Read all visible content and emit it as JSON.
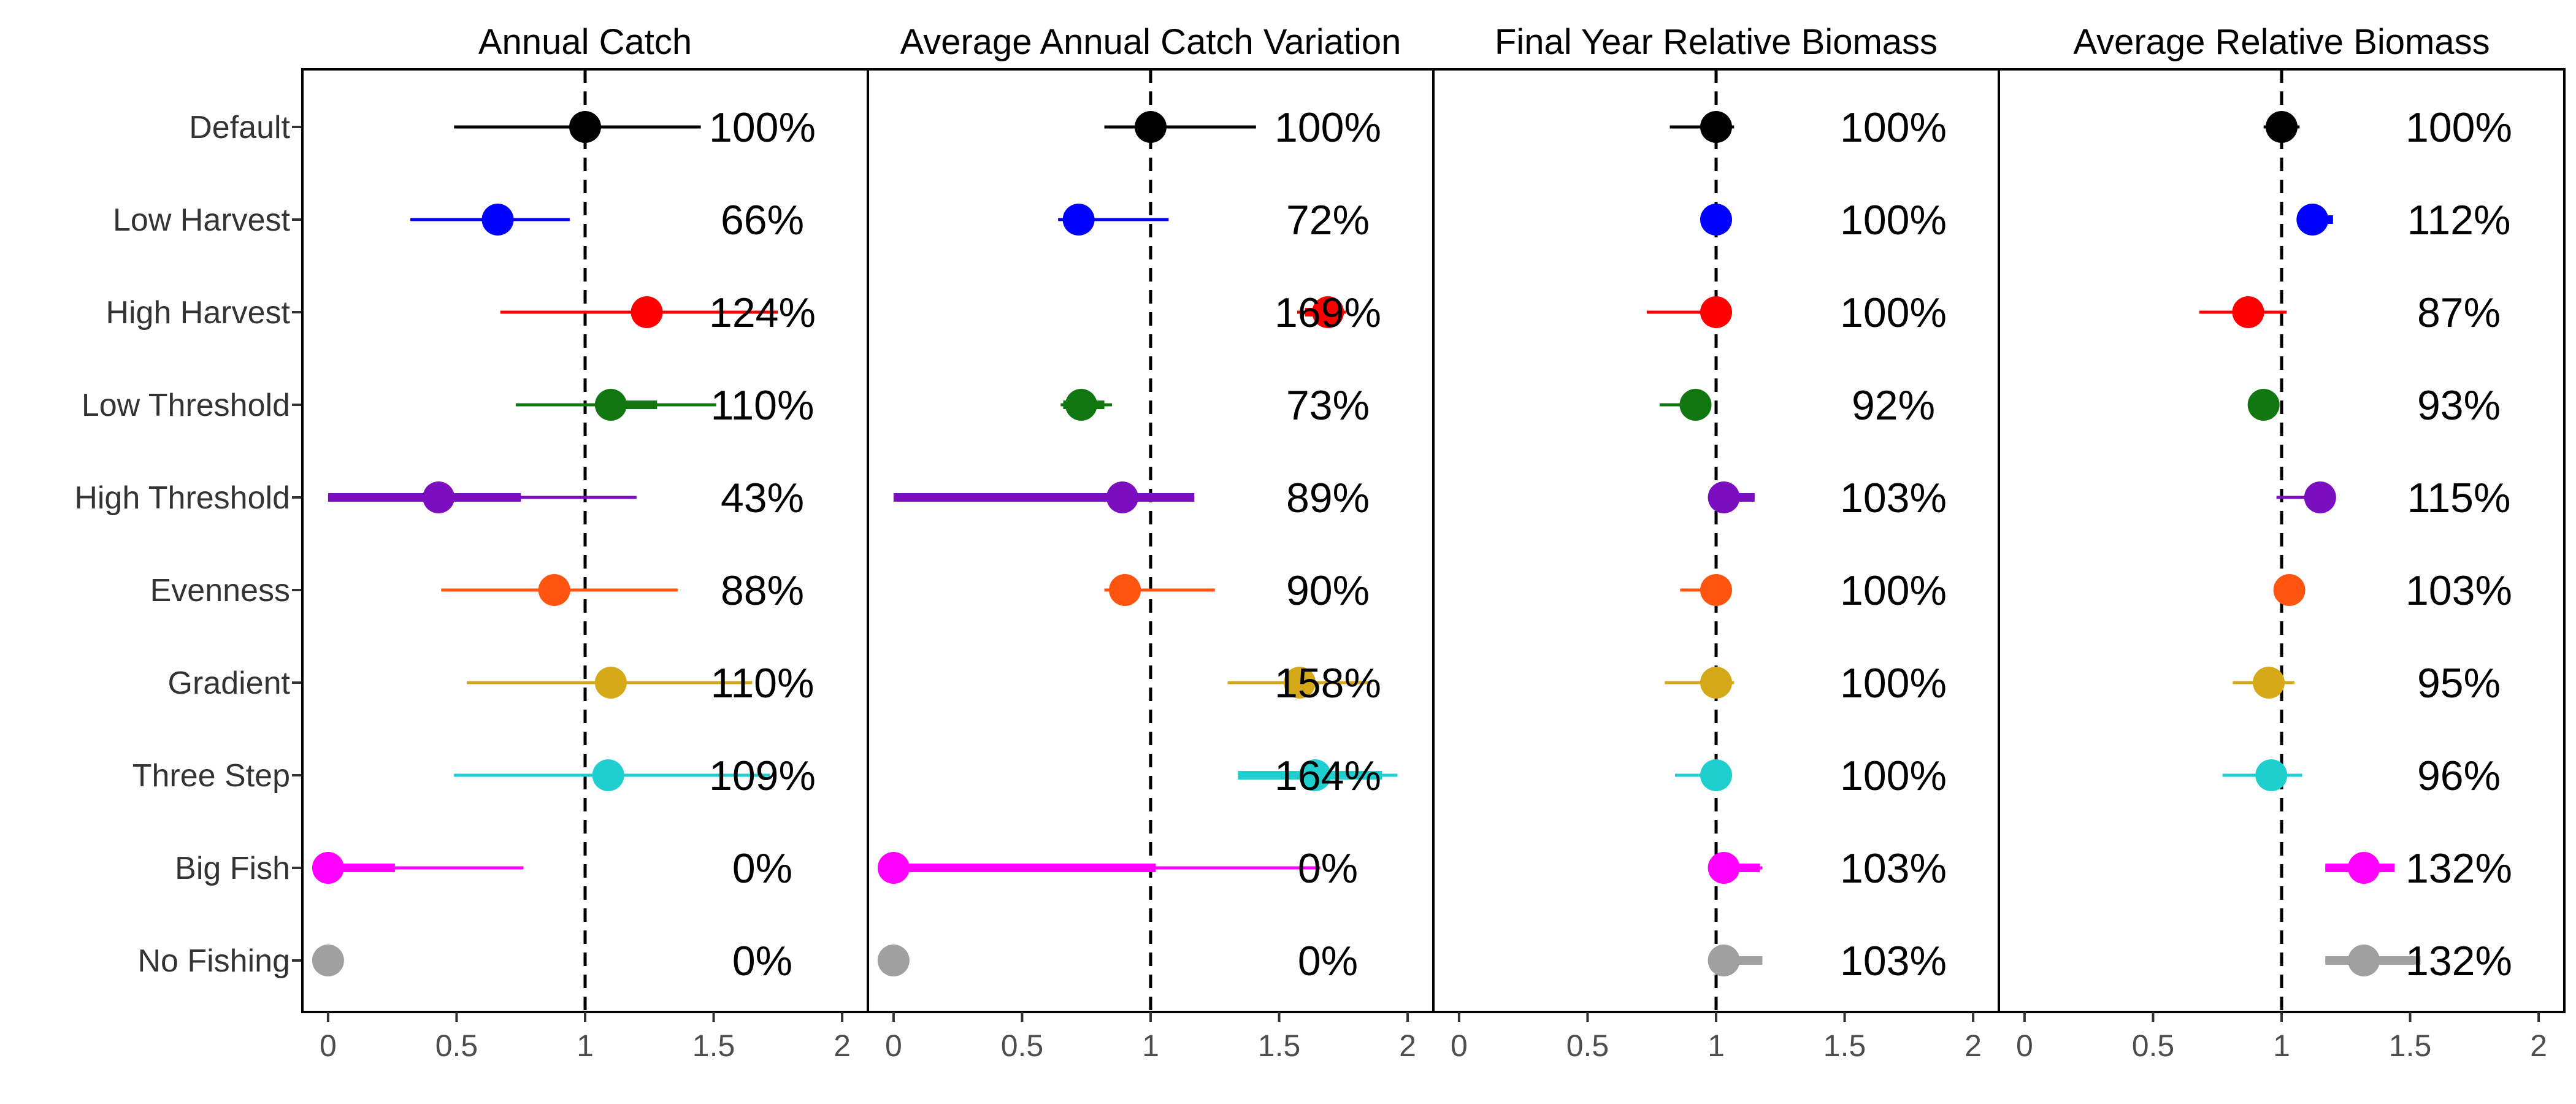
{
  "chart_data": {
    "type": "forest",
    "xlim": [
      -0.1,
      2.1
    ],
    "x_ticks": [
      0,
      0.5,
      1,
      1.5,
      2
    ],
    "x_tick_labels": [
      "0",
      "0.5",
      "1",
      "1.5",
      "2"
    ],
    "reference_line": 1,
    "categories": [
      "Default",
      "Low Harvest",
      "High Harvest",
      "Low Threshold",
      "High Threshold",
      "Evenness",
      "Gradient",
      "Three Step",
      "Big Fish",
      "No Fishing"
    ],
    "colors": [
      "#000000",
      "#0000ff",
      "#ff0000",
      "#117711",
      "#7b0fbf",
      "#ff5511",
      "#d4a817",
      "#1fcece",
      "#ff00ff",
      "#a0a0a0"
    ],
    "panels": [
      {
        "title": "Annual Catch",
        "points": [
          {
            "x": 1.0,
            "lo": 0.49,
            "hi": 1.45,
            "q_lo": 0.95,
            "q_hi": 1.05,
            "label": "100%"
          },
          {
            "x": 0.66,
            "lo": 0.32,
            "hi": 0.94,
            "q_lo": 0.6,
            "q_hi": 0.72,
            "label": "66%"
          },
          {
            "x": 1.24,
            "lo": 0.67,
            "hi": 1.75,
            "q_lo": 1.18,
            "q_hi": 1.3,
            "label": "124%"
          },
          {
            "x": 1.1,
            "lo": 0.73,
            "hi": 1.51,
            "q_lo": 1.05,
            "q_hi": 1.28,
            "label": "110%"
          },
          {
            "x": 0.43,
            "lo": 0.0,
            "hi": 1.2,
            "q_lo": 0.0,
            "q_hi": 0.75,
            "label": "43%"
          },
          {
            "x": 0.88,
            "lo": 0.44,
            "hi": 1.36,
            "q_lo": 0.82,
            "q_hi": 0.94,
            "label": "88%"
          },
          {
            "x": 1.1,
            "lo": 0.54,
            "hi": 1.65,
            "q_lo": 1.04,
            "q_hi": 1.16,
            "label": "110%"
          },
          {
            "x": 1.09,
            "lo": 0.49,
            "hi": 1.72,
            "q_lo": 1.03,
            "q_hi": 1.15,
            "label": "109%"
          },
          {
            "x": 0.0,
            "lo": 0.0,
            "hi": 0.76,
            "q_lo": 0.0,
            "q_hi": 0.26,
            "label": "0%"
          },
          {
            "x": 0.0,
            "lo": 0.0,
            "hi": 0.0,
            "q_lo": 0.0,
            "q_hi": 0.0,
            "label": "0%"
          }
        ]
      },
      {
        "title": "Average Annual Catch Variation",
        "points": [
          {
            "x": 1.0,
            "lo": 0.82,
            "hi": 1.41,
            "q_lo": 0.95,
            "q_hi": 1.05,
            "label": "100%"
          },
          {
            "x": 0.72,
            "lo": 0.64,
            "hi": 1.07,
            "q_lo": 0.68,
            "q_hi": 0.76,
            "label": "72%"
          },
          {
            "x": 1.69,
            "lo": 1.57,
            "hi": 1.76,
            "q_lo": 1.6,
            "q_hi": 1.74,
            "label": "169%"
          },
          {
            "x": 0.73,
            "lo": 0.65,
            "hi": 0.85,
            "q_lo": 0.66,
            "q_hi": 0.82,
            "label": "73%"
          },
          {
            "x": 0.89,
            "lo": 0.0,
            "hi": 1.17,
            "q_lo": 0.0,
            "q_hi": 1.17,
            "label": "89%"
          },
          {
            "x": 0.9,
            "lo": 0.82,
            "hi": 1.25,
            "q_lo": 0.86,
            "q_hi": 0.95,
            "label": "90%"
          },
          {
            "x": 1.58,
            "lo": 1.3,
            "hi": 1.86,
            "q_lo": 1.52,
            "q_hi": 1.64,
            "label": "158%"
          },
          {
            "x": 1.64,
            "lo": 1.34,
            "hi": 1.96,
            "q_lo": 1.34,
            "q_hi": 1.9,
            "label": "164%"
          },
          {
            "x": 0.0,
            "lo": 0.0,
            "hi": 1.66,
            "q_lo": 0.0,
            "q_hi": 1.02,
            "label": "0%"
          },
          {
            "x": 0.0,
            "lo": 0.0,
            "hi": 0.0,
            "q_lo": 0.0,
            "q_hi": 0.0,
            "label": "0%"
          }
        ]
      },
      {
        "title": "Final Year Relative Biomass",
        "points": [
          {
            "x": 1.0,
            "lo": 0.82,
            "hi": 1.07,
            "q_lo": 0.97,
            "q_hi": 1.03,
            "label": "100%"
          },
          {
            "x": 1.0,
            "lo": 0.98,
            "hi": 1.02,
            "q_lo": 0.99,
            "q_hi": 1.01,
            "label": "100%"
          },
          {
            "x": 1.0,
            "lo": 0.73,
            "hi": 1.02,
            "q_lo": 0.97,
            "q_hi": 1.01,
            "label": "100%"
          },
          {
            "x": 0.92,
            "lo": 0.78,
            "hi": 0.95,
            "q_lo": 0.9,
            "q_hi": 0.94,
            "label": "92%"
          },
          {
            "x": 1.03,
            "lo": 0.99,
            "hi": 1.15,
            "q_lo": 1.0,
            "q_hi": 1.15,
            "label": "103%"
          },
          {
            "x": 1.0,
            "lo": 0.86,
            "hi": 1.06,
            "q_lo": 0.97,
            "q_hi": 1.03,
            "label": "100%"
          },
          {
            "x": 1.0,
            "lo": 0.8,
            "hi": 1.07,
            "q_lo": 0.97,
            "q_hi": 1.03,
            "label": "100%"
          },
          {
            "x": 1.0,
            "lo": 0.84,
            "hi": 1.05,
            "q_lo": 0.97,
            "q_hi": 1.03,
            "label": "100%"
          },
          {
            "x": 1.03,
            "lo": 0.99,
            "hi": 1.18,
            "q_lo": 1.0,
            "q_hi": 1.17,
            "label": "103%"
          },
          {
            "x": 1.03,
            "lo": 1.0,
            "hi": 1.18,
            "q_lo": 1.0,
            "q_hi": 1.18,
            "label": "103%"
          }
        ]
      },
      {
        "title": "Average Relative Biomass",
        "points": [
          {
            "x": 1.0,
            "lo": 0.93,
            "hi": 1.07,
            "q_lo": 0.97,
            "q_hi": 1.03,
            "label": "100%"
          },
          {
            "x": 1.12,
            "lo": 1.08,
            "hi": 1.2,
            "q_lo": 1.1,
            "q_hi": 1.2,
            "label": "112%"
          },
          {
            "x": 0.87,
            "lo": 0.68,
            "hi": 1.02,
            "q_lo": 0.83,
            "q_hi": 0.91,
            "label": "87%"
          },
          {
            "x": 0.93,
            "lo": 0.88,
            "hi": 0.98,
            "q_lo": 0.91,
            "q_hi": 0.95,
            "label": "93%"
          },
          {
            "x": 1.15,
            "lo": 0.98,
            "hi": 1.18,
            "q_lo": 1.12,
            "q_hi": 1.18,
            "label": "115%"
          },
          {
            "x": 1.03,
            "lo": 0.97,
            "hi": 1.06,
            "q_lo": 1.0,
            "q_hi": 1.05,
            "label": "103%"
          },
          {
            "x": 0.95,
            "lo": 0.81,
            "hi": 1.05,
            "q_lo": 0.92,
            "q_hi": 0.98,
            "label": "95%"
          },
          {
            "x": 0.96,
            "lo": 0.77,
            "hi": 1.08,
            "q_lo": 0.93,
            "q_hi": 0.99,
            "label": "96%"
          },
          {
            "x": 1.32,
            "lo": 1.17,
            "hi": 1.44,
            "q_lo": 1.17,
            "q_hi": 1.44,
            "label": "132%"
          },
          {
            "x": 1.32,
            "lo": 1.17,
            "hi": 1.54,
            "q_lo": 1.17,
            "q_hi": 1.54,
            "label": "132%"
          }
        ]
      }
    ]
  }
}
